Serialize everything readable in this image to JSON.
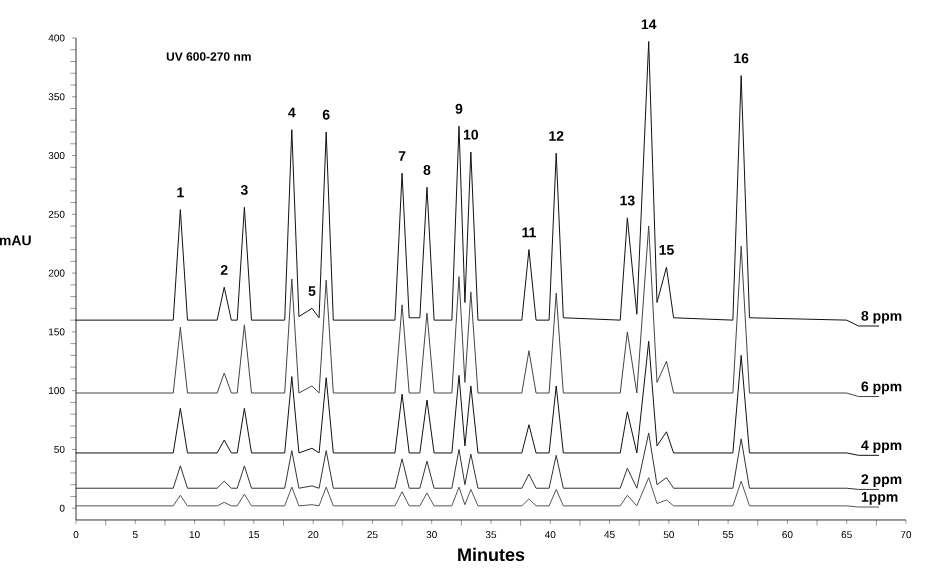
{
  "chart_data": {
    "type": "line",
    "xlabel": "Minutes",
    "ylabel": "mAU",
    "annotations": [
      "UV 600-270 nm",
      {
        "text": "1",
        "x": 8.8,
        "y": 254
      },
      {
        "text": "2",
        "x": 12.5,
        "y": 188
      },
      {
        "text": "3",
        "x": 14.2,
        "y": 256
      },
      {
        "text": "4",
        "x": 18.2,
        "y": 322
      },
      {
        "text": "5",
        "x": 19.9,
        "y": 170
      },
      {
        "text": "6",
        "x": 21.1,
        "y": 320
      },
      {
        "text": "7",
        "x": 27.5,
        "y": 285
      },
      {
        "text": "8",
        "x": 29.6,
        "y": 273
      },
      {
        "text": "9",
        "x": 32.3,
        "y": 325
      },
      {
        "text": "10",
        "x": 33.3,
        "y": 303
      },
      {
        "text": "11",
        "x": 38.2,
        "y": 220
      },
      {
        "text": "12",
        "x": 40.5,
        "y": 302
      },
      {
        "text": "13",
        "x": 46.5,
        "y": 247
      },
      {
        "text": "14",
        "x": 48.3,
        "y": 397
      },
      {
        "text": "15",
        "x": 49.8,
        "y": 205
      },
      {
        "text": "16",
        "x": 56.1,
        "y": 368
      }
    ],
    "x": [
      0,
      8.2,
      8.8,
      9.4,
      11.9,
      12.5,
      13.1,
      13.6,
      14.2,
      14.8,
      17.6,
      18.2,
      18.8,
      19.9,
      20.5,
      21.1,
      21.7,
      26.9,
      27.5,
      28.1,
      29.0,
      29.6,
      30.2,
      31.7,
      32.3,
      32.8,
      33.3,
      33.9,
      37.6,
      38.2,
      38.8,
      39.9,
      40.5,
      41.1,
      45.9,
      46.5,
      47.3,
      48.3,
      49.0,
      49.8,
      50.4,
      55.4,
      56.1,
      56.8,
      65,
      66,
      67.7
    ],
    "series": [
      {
        "name": "8 ppm",
        "color": "#111111",
        "values": [
          160,
          160,
          254,
          160,
          160,
          188,
          160,
          160,
          256,
          160,
          160,
          322,
          163,
          170,
          162,
          320,
          160,
          160,
          285,
          162,
          162,
          273,
          160,
          160,
          325,
          175,
          303,
          160,
          160,
          220,
          160,
          160,
          302,
          162,
          160,
          247,
          165,
          397,
          175,
          205,
          162,
          160,
          368,
          162,
          160,
          155,
          155
        ]
      },
      {
        "name": "6 ppm",
        "color": "#444444",
        "values": [
          98,
          98,
          154,
          98,
          98,
          115,
          98,
          98,
          156,
          98,
          98,
          195,
          98,
          104,
          98,
          194,
          98,
          98,
          173,
          98,
          98,
          166,
          98,
          98,
          197,
          107,
          184,
          98,
          98,
          134,
          98,
          98,
          183,
          98,
          98,
          150,
          98,
          240,
          107,
          125,
          98,
          98,
          223,
          98,
          98,
          95,
          95
        ]
      },
      {
        "name": "4 ppm",
        "color": "#111111",
        "values": [
          47,
          47,
          85,
          47,
          47,
          58,
          47,
          47,
          85,
          47,
          47,
          112,
          47,
          51,
          47,
          111,
          47,
          47,
          97,
          47,
          47,
          92,
          47,
          47,
          113,
          53,
          104,
          47,
          47,
          71,
          47,
          47,
          104,
          47,
          47,
          82,
          47,
          142,
          53,
          65,
          47,
          47,
          130,
          47,
          47,
          45,
          45
        ]
      },
      {
        "name": "2 ppm",
        "color": "#333333",
        "values": [
          17,
          17,
          36,
          17,
          17,
          23,
          17,
          17,
          36,
          17,
          17,
          49,
          17,
          19,
          17,
          49,
          17,
          17,
          42,
          17,
          17,
          40,
          17,
          17,
          50,
          20,
          46,
          17,
          17,
          29,
          17,
          17,
          45,
          17,
          17,
          34,
          17,
          64,
          20,
          26,
          17,
          17,
          59,
          17,
          17,
          16,
          16
        ]
      },
      {
        "name": "1ppm",
        "color": "#555555",
        "values": [
          2,
          2,
          11,
          2,
          2,
          5,
          2,
          2,
          12,
          2,
          2,
          18,
          2,
          3,
          2,
          18,
          2,
          2,
          14,
          2,
          2,
          13,
          2,
          2,
          18,
          3,
          16,
          2,
          2,
          8,
          2,
          2,
          16,
          2,
          2,
          11,
          2,
          26,
          4,
          7,
          2,
          2,
          23,
          2,
          2,
          1,
          1
        ]
      }
    ],
    "xlim": [
      0,
      70
    ],
    "ylim": [
      -10,
      400
    ],
    "xticks": [
      0,
      5,
      10,
      15,
      20,
      25,
      30,
      35,
      40,
      45,
      50,
      55,
      60,
      65,
      70
    ],
    "yticks": [
      0,
      50,
      100,
      150,
      200,
      250,
      300,
      350,
      400
    ],
    "grid": false,
    "legend": false,
    "marker": "none",
    "line_style": "solid"
  }
}
